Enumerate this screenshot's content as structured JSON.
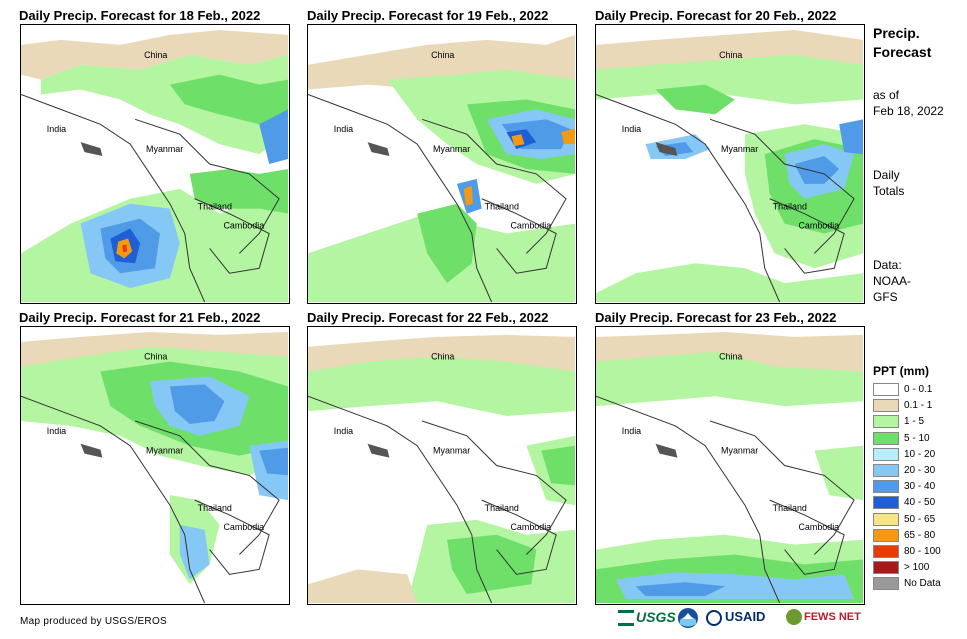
{
  "panels": [
    {
      "title": "Daily Precip. Forecast for 18 Feb., 2022"
    },
    {
      "title": "Daily Precip. Forecast for 19 Feb., 2022"
    },
    {
      "title": "Daily Precip. Forecast for 20 Feb., 2022"
    },
    {
      "title": "Daily Precip. Forecast for 21 Feb., 2022"
    },
    {
      "title": "Daily Precip. Forecast for 22 Feb., 2022"
    },
    {
      "title": "Daily Precip. Forecast for 23 Feb., 2022"
    }
  ],
  "countries": {
    "china": "China",
    "india": "India",
    "myanmar": "Myanmar",
    "thailand": "Thailand",
    "cambodia": "Cambodia"
  },
  "side": {
    "title": "Precip. Forecast",
    "as_of": "as of",
    "date": "Feb 18, 2022",
    "daily": "Daily",
    "totals": "Totals",
    "data_label": "Data:",
    "source1": "NOAA-",
    "source2": "GFS"
  },
  "legend": {
    "title": "PPT (mm)",
    "items": [
      {
        "label": "0 - 0.1",
        "color": "#ffffff"
      },
      {
        "label": "0.1 - 1",
        "color": "#ead9b8"
      },
      {
        "label": "1 - 5",
        "color": "#b3f5a0"
      },
      {
        "label": "5 - 10",
        "color": "#6ee06a"
      },
      {
        "label": "10 - 20",
        "color": "#b8eefc"
      },
      {
        "label": "20 - 30",
        "color": "#86c8f5"
      },
      {
        "label": "30 - 40",
        "color": "#4f9be8"
      },
      {
        "label": "40 - 50",
        "color": "#1f5fd6"
      },
      {
        "label": "50 - 65",
        "color": "#f7e38a"
      },
      {
        "label": "65 - 80",
        "color": "#f39a12"
      },
      {
        "label": "80 - 100",
        "color": "#ea3a0a"
      },
      {
        "label": "> 100",
        "color": "#a41a1a"
      },
      {
        "label": "No Data",
        "color": "#9a9a9a"
      }
    ]
  },
  "footer": "Map produced by USGS/EROS",
  "logos": {
    "usgs": "USGS",
    "usaid": "USAID",
    "fewsnet": "FEWS NET"
  }
}
